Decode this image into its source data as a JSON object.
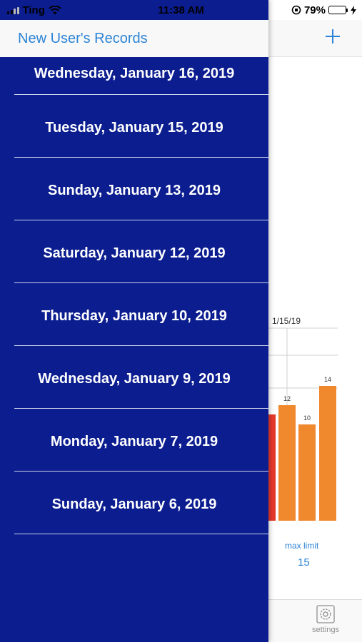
{
  "status_bar": {
    "carrier": "Ting",
    "time": "11:38 AM",
    "battery_percent": "79%",
    "battery_level": 0.79
  },
  "drawer": {
    "title": "New User's Records",
    "records": [
      "Wednesday, January 16, 2019",
      "Tuesday, January 15, 2019",
      "Sunday, January 13, 2019",
      "Saturday, January 12, 2019",
      "Thursday, January 10, 2019",
      "Wednesday, January 9, 2019",
      "Monday, January 7, 2019",
      "Sunday, January 6, 2019"
    ]
  },
  "background": {
    "add_icon": "plus-icon",
    "chart_date_label": "1/15/19",
    "bar_labels": [
      "12",
      "10",
      "14"
    ],
    "max_limit_label": "max limit",
    "max_limit_value": "15",
    "tab_settings_label": "settings",
    "colors": {
      "accent": "#2c84d6",
      "bar_orange": "#f0882e",
      "bar_red": "#e43a2c",
      "drawer": "#0b1d8f"
    }
  },
  "chart_data": {
    "type": "bar",
    "categories": [
      "",
      "",
      ""
    ],
    "values": [
      12,
      10,
      14
    ],
    "title": "",
    "xlabel": "",
    "ylabel": ""
  }
}
